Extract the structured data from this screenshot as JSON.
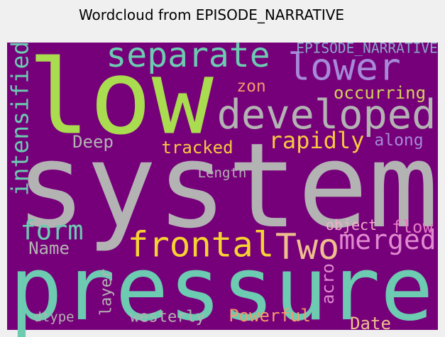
{
  "chart_data": {
    "type": "wordcloud",
    "title": "Wordcloud from EPISODE_NARRATIVE",
    "background": "#760079",
    "words": [
      {
        "text": "system",
        "color": "#b3b3b3"
      },
      {
        "text": "pressure",
        "color": "#6ccbb0"
      },
      {
        "text": "low",
        "color": "#a9dc4f"
      },
      {
        "text": "developed",
        "color": "#b3b3b3"
      },
      {
        "text": "separate",
        "color": "#6ccbb0"
      },
      {
        "text": "lower",
        "color": "#a68ad8"
      },
      {
        "text": "EPISODE_NARRATIVE",
        "color": "#8aa8c8"
      },
      {
        "text": "occurring",
        "color": "#d3d25a"
      },
      {
        "text": "zon",
        "color": "#f29a6c"
      },
      {
        "text": "intensified",
        "color": "#6ccbb0"
      },
      {
        "text": "rapidly",
        "color": "#f7c841"
      },
      {
        "text": "along",
        "color": "#a68ad8"
      },
      {
        "text": "Deep",
        "color": "#b3b3b3"
      },
      {
        "text": "tracked",
        "color": "#f7c841"
      },
      {
        "text": "Length",
        "color": "#b3b3b3"
      },
      {
        "text": "form",
        "color": "#6ccbb0"
      },
      {
        "text": "frontal",
        "color": "#f7d233"
      },
      {
        "text": "Two",
        "color": "#eebf8e"
      },
      {
        "text": "merged",
        "color": "#e08ad0"
      },
      {
        "text": "object",
        "color": "#f0b0c8"
      },
      {
        "text": "flow",
        "color": "#e77bc5"
      },
      {
        "text": "Name",
        "color": "#b3b3b3"
      },
      {
        "text": "layer",
        "color": "#b3b3b3"
      },
      {
        "text": "acro",
        "color": "#e08ad0"
      },
      {
        "text": "westerly",
        "color": "#b3b3b3"
      },
      {
        "text": "Powerful",
        "color": "#f29a6c"
      },
      {
        "text": "Date",
        "color": "#eebf8e"
      },
      {
        "text": "dtype",
        "color": "#b3b3b3"
      }
    ]
  }
}
